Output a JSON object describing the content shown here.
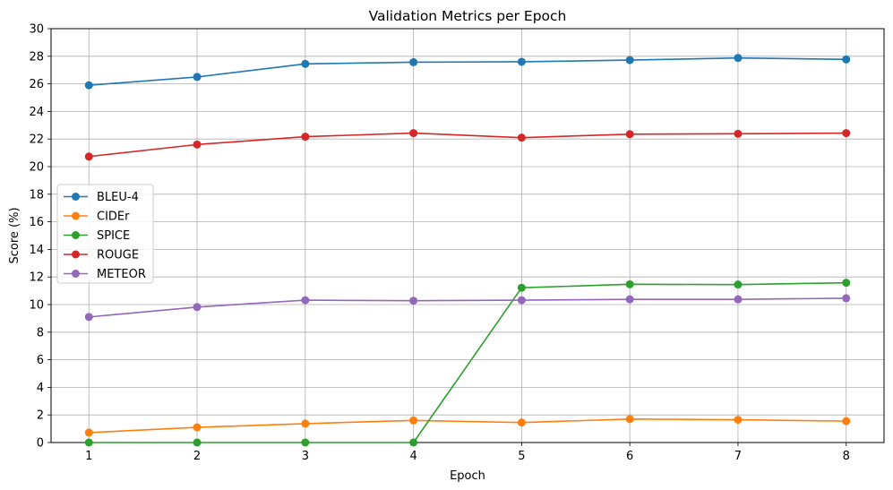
{
  "chart_data": {
    "type": "line",
    "title": "Validation Metrics per Epoch",
    "xlabel": "Epoch",
    "ylabel": "Score (%)",
    "x": [
      1,
      2,
      3,
      4,
      5,
      6,
      7,
      8
    ],
    "xlim": [
      0.65,
      8.35
    ],
    "ylim": [
      0,
      30
    ],
    "yticks": [
      0,
      2,
      4,
      6,
      8,
      10,
      12,
      14,
      16,
      18,
      20,
      22,
      24,
      26,
      28,
      30
    ],
    "grid": true,
    "legend_position": "center-left",
    "series": [
      {
        "name": "BLEU-4",
        "color": "#1f77b4",
        "values": [
          25.9,
          26.5,
          27.45,
          27.57,
          27.6,
          27.72,
          27.88,
          27.77
        ]
      },
      {
        "name": "CIDEr",
        "color": "#ff7f0e",
        "values": [
          0.72,
          1.1,
          1.37,
          1.6,
          1.45,
          1.7,
          1.65,
          1.55
        ]
      },
      {
        "name": "SPICE",
        "color": "#2ca02c",
        "values": [
          0.0,
          0.0,
          0.0,
          0.0,
          11.22,
          11.47,
          11.45,
          11.58
        ]
      },
      {
        "name": "ROUGE",
        "color": "#d62728",
        "values": [
          20.73,
          21.6,
          22.17,
          22.43,
          22.1,
          22.35,
          22.38,
          22.43
        ]
      },
      {
        "name": "METEOR",
        "color": "#9467bd",
        "values": [
          9.1,
          9.82,
          10.32,
          10.28,
          10.32,
          10.38,
          10.38,
          10.46
        ]
      }
    ]
  }
}
